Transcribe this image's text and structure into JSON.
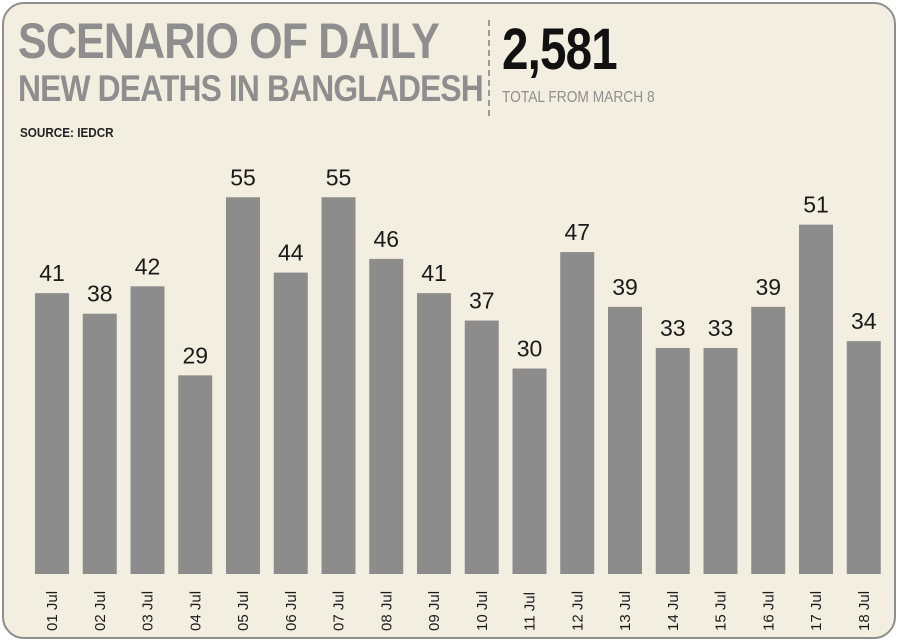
{
  "header": {
    "title_line1": "SCENARIO OF DAILY",
    "title_line2": "NEW DEATHS IN BANGLADESH",
    "source": "SOURCE: IEDCR",
    "total_value": "2,581",
    "total_label": "TOTAL FROM MARCH 8"
  },
  "colors": {
    "bar": "#8c8c8c",
    "background": "#f3efe0",
    "title": "#8e8e8e",
    "text": "#1a1a1a"
  },
  "chart_data": {
    "type": "bar",
    "title": "SCENARIO OF DAILY NEW DEATHS IN BANGLADESH",
    "xlabel": "",
    "ylabel": "",
    "categories": [
      "01 Jul",
      "02 Jul",
      "03 Jul",
      "04 Jul",
      "05 Jul",
      "06 Jul",
      "07 Jul",
      "08 Jul",
      "09 Jul",
      "10 Jul",
      "11 Jul",
      "12 Jul",
      "13 Jul",
      "14 Jul",
      "15 Jul",
      "16 Jul",
      "17 Jul",
      "18 Jul"
    ],
    "values": [
      41,
      38,
      42,
      29,
      55,
      44,
      55,
      46,
      41,
      37,
      30,
      47,
      39,
      33,
      33,
      39,
      51,
      34
    ],
    "ylim": [
      0,
      55
    ],
    "grid": false,
    "legend": "none",
    "data_labels": true
  }
}
